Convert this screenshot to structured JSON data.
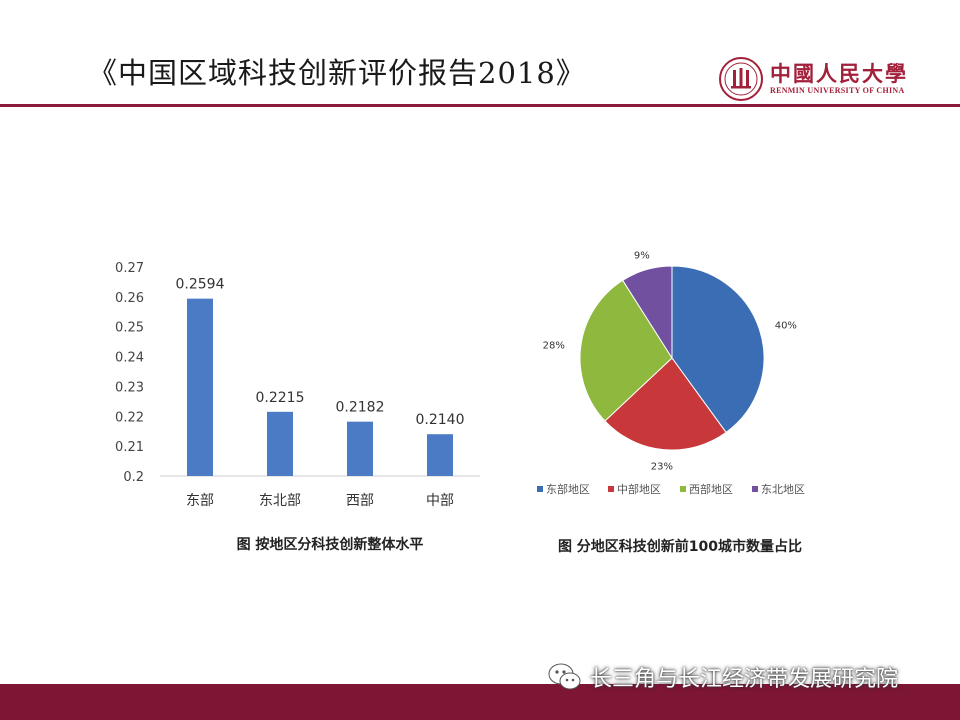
{
  "slide": {
    "title": "《中国区域科技创新评价报告2018》"
  },
  "logo": {
    "name_cn": "中國人民大學",
    "name_en": "RENMIN UNIVERSITY OF CHINA"
  },
  "colors": {
    "accent": "#8b1a3a",
    "footer": "#7d1535",
    "bar": "#4a7bc4",
    "pie_east": "#3b6db5",
    "pie_central": "#c8383a",
    "pie_west": "#8fb83e",
    "pie_northeast": "#7150a0"
  },
  "chart_data": [
    {
      "type": "bar",
      "categories": [
        "东部",
        "东北部",
        "西部",
        "中部"
      ],
      "values": [
        0.2594,
        0.2215,
        0.2182,
        0.214
      ],
      "data_labels": [
        "0.2594",
        "0.2215",
        "0.2182",
        "0.2140"
      ],
      "ylim": [
        0.2,
        0.27
      ],
      "yticks": [
        0.2,
        0.21,
        0.22,
        0.23,
        0.24,
        0.25,
        0.26,
        0.27
      ],
      "ytick_labels": [
        "0.2",
        "0.21",
        "0.22",
        "0.23",
        "0.24",
        "0.25",
        "0.26",
        "0.27"
      ],
      "grid": false,
      "caption": "图  按地区分科技创新整体水平"
    },
    {
      "type": "pie",
      "labels": [
        "东部地区",
        "中部地区",
        "西部地区",
        "东北地区"
      ],
      "values": [
        40,
        23,
        28,
        9
      ],
      "value_labels": [
        "40%",
        "23%",
        "28%",
        "9%"
      ],
      "legend_position": "bottom",
      "caption": "图  分地区科技创新前100城市数量占比"
    }
  ],
  "watermark": {
    "text": "长三角与长江经济带发展研究院",
    "icon": "wechat-icon"
  }
}
